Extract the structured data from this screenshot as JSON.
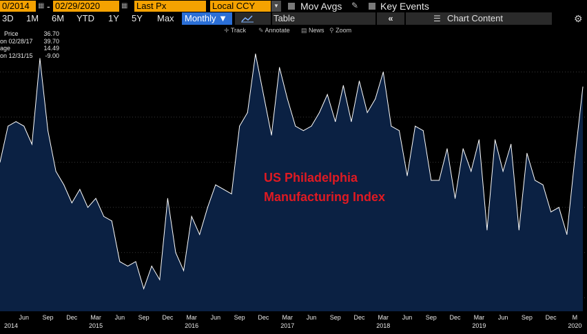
{
  "toolbar": {
    "start_date": "0/2014",
    "date_separator": "-",
    "end_date": "02/29/2020",
    "field": "Last Px",
    "currency": "Local CCY",
    "mov_avgs_label": "Mov Avgs",
    "key_events_label": "Key Events",
    "calendar_icon": "calendar-icon",
    "dropdown_icon": "chevron-down-icon"
  },
  "periods": [
    {
      "label": "3D",
      "selected": false
    },
    {
      "label": "1M",
      "selected": false
    },
    {
      "label": "6M",
      "selected": false
    },
    {
      "label": "YTD",
      "selected": false
    },
    {
      "label": "1Y",
      "selected": false
    },
    {
      "label": "5Y",
      "selected": false
    },
    {
      "label": "Max",
      "selected": false
    },
    {
      "label": "Monthly ▼",
      "selected": true
    }
  ],
  "view": {
    "chart_icon": "line-chart-icon",
    "table_label": "Table",
    "collapse_icon": "double-chevron-left-icon",
    "chart_content_label": "Chart Content",
    "chart_content_icon": "sliders-icon"
  },
  "chart_tools": {
    "track": "Track",
    "annotate": "Annotate",
    "news": "News",
    "zoom": "Zoom"
  },
  "legend": [
    {
      "label": "Price",
      "value": "36.70"
    },
    {
      "label": "on 02/28/17",
      "value": "39.70"
    },
    {
      "label": "age",
      "value": "14.49"
    },
    {
      "label": "on 12/31/15",
      "value": "-9.00"
    }
  ],
  "annotation": {
    "line1": "US Philadelphia",
    "line2": "Manufacturing Index",
    "color": "#e01a22"
  },
  "colors": {
    "toolbar_orange": "#f5a201",
    "selected_blue": "#2b6fd6",
    "area_fill": "#0b2143",
    "line": "#ffffff"
  },
  "chart_data": {
    "type": "area",
    "title": "",
    "x_month_labels": [
      "Jun",
      "Sep",
      "Dec",
      "Mar",
      "Jun",
      "Sep",
      "Dec",
      "Mar",
      "Jun",
      "Sep",
      "Dec",
      "Mar",
      "Jun",
      "Sep",
      "Dec",
      "Mar",
      "Jun",
      "Sep",
      "Dec",
      "Mar",
      "Jun",
      "Sep",
      "Dec",
      "M"
    ],
    "x_year_labels": [
      "2014",
      "2015",
      "2016",
      "2017",
      "2018",
      "2019",
      "2020"
    ],
    "ylim": [
      -13,
      48
    ],
    "series": [
      {
        "values": [
          20,
          28,
          29,
          28,
          24,
          43,
          27,
          18,
          15,
          11,
          14,
          10,
          12,
          8,
          7,
          -2,
          -3,
          -2,
          -8,
          -3,
          -6,
          12,
          0,
          -4,
          8,
          4,
          10,
          15,
          14,
          13,
          28,
          31,
          44,
          35,
          26,
          41,
          34,
          28,
          27,
          28,
          31,
          35,
          29,
          37,
          29,
          38,
          31,
          34,
          40,
          28,
          27,
          17,
          28,
          27,
          16,
          16,
          23,
          12,
          23,
          18,
          25,
          5,
          25,
          18,
          24,
          5,
          22,
          16,
          15,
          9,
          10,
          4,
          21,
          36.7
        ]
      }
    ]
  }
}
